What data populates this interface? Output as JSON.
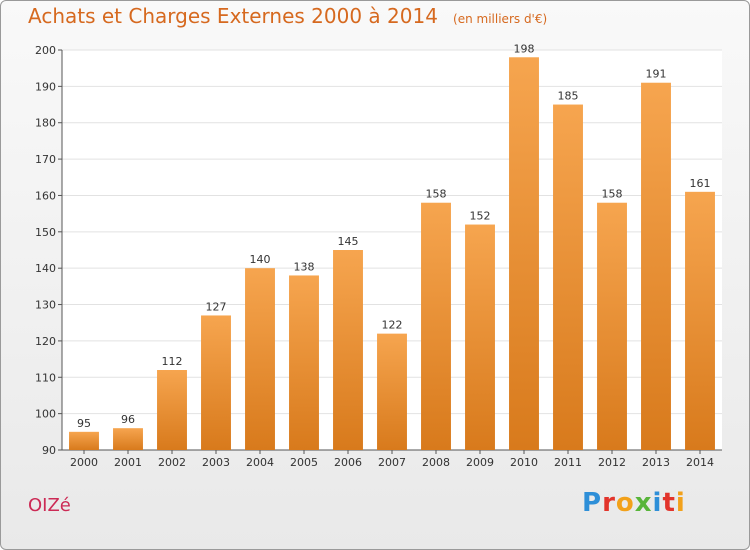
{
  "header": {
    "title": "Achats et Charges Externes 2000 à 2014",
    "unit": "(en milliers d'€)"
  },
  "footer": {
    "commune": "OIZé",
    "logo": "Proxiti"
  },
  "colors": {
    "bar_light": "#f6a54f",
    "bar_dark": "#d87a1c",
    "title": "#d6691f",
    "commune": "#cc2a55",
    "grid": "#e2e2e2"
  },
  "chart_data": {
    "type": "bar",
    "title": "Achats et Charges Externes 2000 à 2014",
    "xlabel": "",
    "ylabel": "",
    "categories": [
      "2000",
      "2001",
      "2002",
      "2003",
      "2004",
      "2005",
      "2006",
      "2007",
      "2008",
      "2009",
      "2010",
      "2011",
      "2012",
      "2013",
      "2014"
    ],
    "values": [
      95,
      96,
      112,
      127,
      140,
      138,
      145,
      122,
      158,
      152,
      198,
      185,
      158,
      191,
      161
    ],
    "ylim": [
      90,
      200
    ],
    "yticks": [
      90,
      100,
      110,
      120,
      130,
      140,
      150,
      160,
      170,
      180,
      190,
      200
    ],
    "grid": true,
    "legend": "none"
  }
}
